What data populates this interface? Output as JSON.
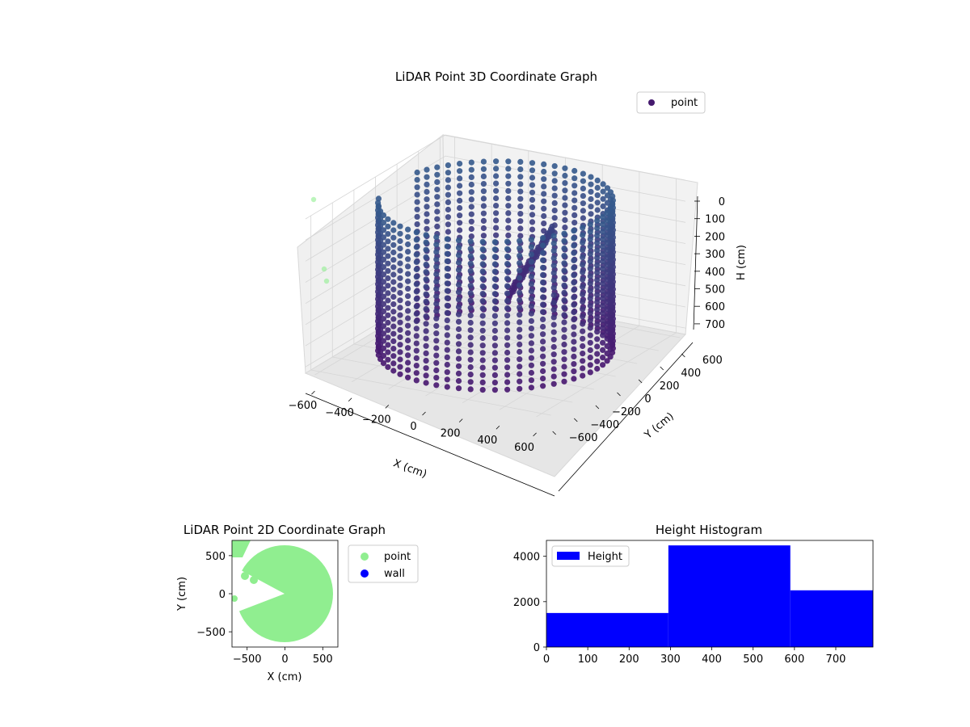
{
  "chart_data": [
    {
      "type": "scatter",
      "projection": "3d",
      "title": "LiDAR Point 3D Coordinate Graph",
      "xlabel": "X (cm)",
      "ylabel": "Y (cm)",
      "zlabel": "H (cm)",
      "xticks": [
        "−600",
        "−400",
        "−200",
        "0",
        "200",
        "400",
        "600"
      ],
      "yticks": [
        "−600",
        "−400",
        "−200",
        "0",
        "200",
        "400",
        "600"
      ],
      "zticks": [
        "0",
        "100",
        "200",
        "300",
        "400",
        "500",
        "600",
        "700"
      ],
      "xlim": [
        -650,
        650
      ],
      "ylim": [
        -650,
        650
      ],
      "zlim": [
        0,
        730
      ],
      "z_inverted": true,
      "grid": true,
      "legend": {
        "position": "top-right",
        "entries": [
          {
            "label": "point",
            "color": "#451a6e"
          }
        ]
      },
      "colormap": "viridis",
      "description_of_data": "cylindrical wall of points, radius about 550 cm, heights 0 to 730 cm, with a scattered object near the back",
      "wall": {
        "radius": 550,
        "height_min": 0,
        "height_max": 730
      }
    },
    {
      "type": "scatter",
      "title": "LiDAR Point 2D Coordinate Graph",
      "xlabel": "X (cm)",
      "ylabel": "Y (cm)",
      "xticks": [
        "−500",
        "0",
        "500"
      ],
      "yticks": [
        "500",
        "0",
        "−500"
      ],
      "xlim": [
        -700,
        700
      ],
      "ylim": [
        -700,
        700
      ],
      "legend": {
        "position": "outside-right",
        "entries": [
          {
            "label": "point",
            "color": "#90ee90"
          },
          {
            "label": "wall",
            "color": "#0000ff"
          }
        ]
      }
    },
    {
      "type": "bar",
      "subtype": "histogram",
      "title": "Height Histogram",
      "xticks": [
        "0",
        "100",
        "200",
        "300",
        "400",
        "500",
        "600",
        "700"
      ],
      "yticks": [
        "0",
        "2000",
        "4000"
      ],
      "xlim": [
        0,
        790
      ],
      "ylim": [
        0,
        4700
      ],
      "bins": [
        {
          "from": 0,
          "to": 295,
          "count": 1500
        },
        {
          "from": 295,
          "to": 590,
          "count": 4480
        },
        {
          "from": 590,
          "to": 790,
          "count": 2500
        }
      ],
      "color": "#0000ff",
      "legend": {
        "position": "top-left",
        "entries": [
          {
            "label": "Height",
            "color": "#0000ff"
          }
        ]
      }
    }
  ]
}
